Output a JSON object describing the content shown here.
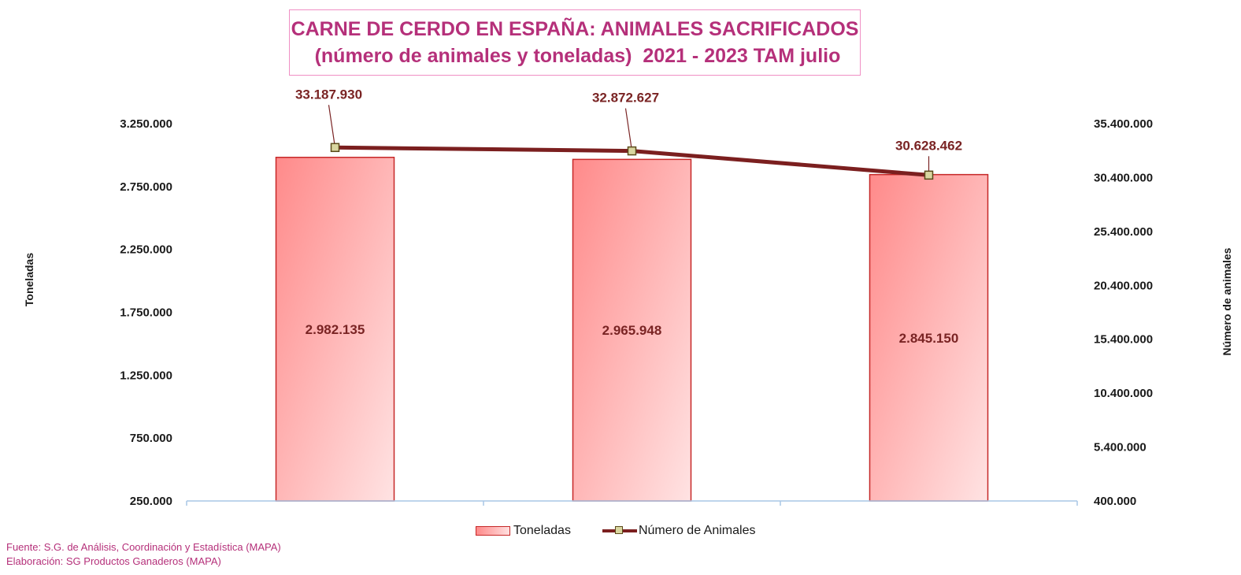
{
  "title": {
    "line1": "CARNE DE CERDO EN ESPAÑA: ANIMALES SACRIFICADOS",
    "line2": " (número de animales y toneladas)  2021 - 2023 TAM julio"
  },
  "chart_data": {
    "type": "bar",
    "categories": [
      "",
      "",
      ""
    ],
    "series": [
      {
        "name": "Toneladas",
        "type": "bar",
        "axis": "left",
        "values": [
          2982135,
          2965948,
          2845150
        ],
        "labels": [
          "2.982.135",
          "2.965.948",
          "2.845.150"
        ]
      },
      {
        "name": "Número de Animales",
        "type": "line",
        "axis": "right",
        "values": [
          33187930,
          32872627,
          30628462
        ],
        "labels": [
          "33.187.930",
          "32.872.627",
          "30.628.462"
        ]
      }
    ],
    "ylabel": "Toneladas",
    "y2label": "Número de animales",
    "ylim": [
      250000,
      3250000
    ],
    "y2lim": [
      400000,
      35400000
    ],
    "yticks": [
      250000,
      750000,
      1250000,
      1750000,
      2250000,
      2750000,
      3250000
    ],
    "ytick_labels": [
      "250.000",
      "750.000",
      "1.250.000",
      "1.750.000",
      "2.250.000",
      "2.750.000",
      "3.250.000"
    ],
    "y2ticks": [
      400000,
      5400000,
      10400000,
      15400000,
      20400000,
      25400000,
      30400000,
      35400000
    ],
    "y2tick_labels": [
      "400.000",
      "5.400.000",
      "10.400.000",
      "15.400.000",
      "20.400.000",
      "25.400.000",
      "30.400.000",
      "35.400.000"
    ],
    "grid": false,
    "legend_position": "bottom",
    "colors": {
      "bar_fill_start": "#ff8a8a",
      "bar_fill_end": "#ffe3e3",
      "bar_border": "#c62828",
      "line": "#7b1f1f",
      "marker_fill": "#d9d6a0",
      "marker_border": "#5a4a1a",
      "labels": "#7a2424",
      "axis": "#a9c7e6"
    }
  },
  "source": {
    "line1": "Fuente: S.G. de Análisis, Coordinación y Estadística (MAPA)",
    "line2": "Elaboración: SG Productos Ganaderos (MAPA)"
  }
}
